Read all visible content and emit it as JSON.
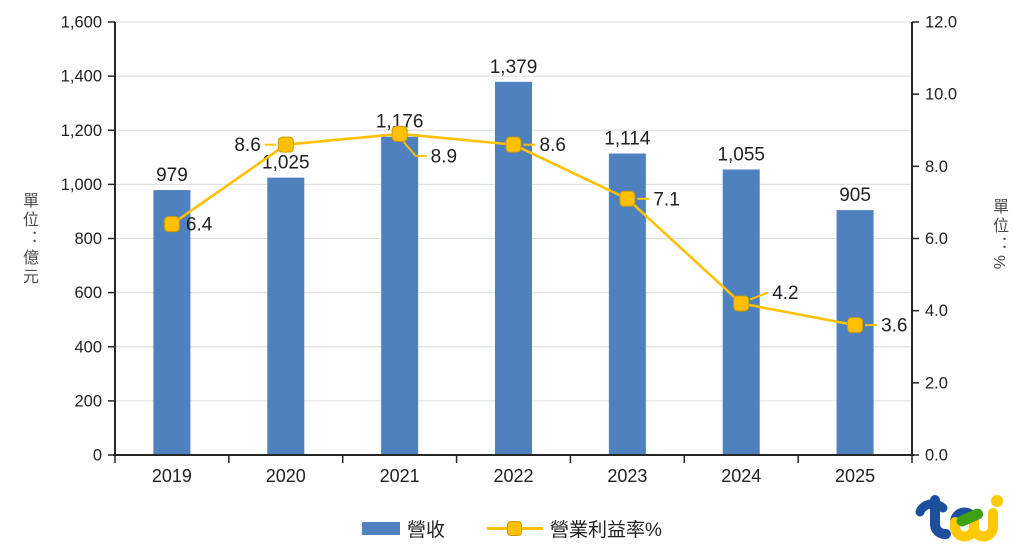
{
  "chart_data": {
    "type": "combo",
    "categories": [
      "2019",
      "2020",
      "2021",
      "2022",
      "2023",
      "2024",
      "2025"
    ],
    "series": [
      {
        "name": "營收",
        "type": "bar",
        "axis": "left",
        "values": [
          979,
          1025,
          1176,
          1379,
          1114,
          1055,
          905
        ],
        "labels": [
          "979",
          "1,025",
          "1,176",
          "1,379",
          "1,114",
          "1,055",
          "905"
        ],
        "color": "#4E81BD"
      },
      {
        "name": "營業利益率%",
        "type": "line",
        "axis": "right",
        "values": [
          6.4,
          8.6,
          8.9,
          8.6,
          7.1,
          4.2,
          3.6
        ],
        "labels": [
          "6.4",
          "8.6",
          "8.9",
          "8.6",
          "7.1",
          "4.2",
          "3.6"
        ],
        "color": "#FFC000",
        "marker": "rounded-square",
        "marker_border": "#CE9A02",
        "label_placements": [
          "right-near",
          "left",
          "below-right",
          "right",
          "right",
          "above-right",
          "right"
        ]
      }
    ],
    "left_axis": {
      "title": "單位：億元",
      "min": 0,
      "max": 1600,
      "step": 200,
      "tick_labels": [
        "0",
        "200",
        "400",
        "600",
        "800",
        "1,000",
        "1,200",
        "1,400",
        "1,600"
      ]
    },
    "right_axis": {
      "title": "單位：%",
      "min": 0,
      "max": 12,
      "step": 2,
      "tick_labels": [
        "0.0",
        "2.0",
        "4.0",
        "6.0",
        "8.0",
        "10.0",
        "12.0"
      ]
    },
    "grid": true,
    "legend_position": "bottom",
    "colors": {
      "bar": "#4E81BD",
      "line": "#FFC000",
      "axis": "#262626",
      "grid": "#DCDCDC",
      "text": "#212121"
    }
  },
  "branding": {
    "logo_text": "tej",
    "logo_colors": {
      "blue": "#1D4F9E",
      "yellow": "#FFC907",
      "green": "#3FA110"
    }
  }
}
